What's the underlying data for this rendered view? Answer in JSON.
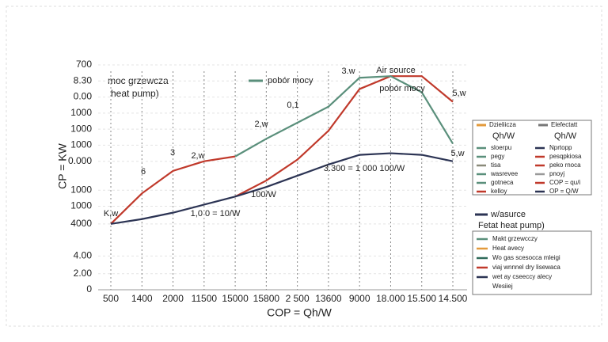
{
  "chart_data": {
    "type": "line",
    "x_label": "COP = Qh/W",
    "y_label": "CP = KW",
    "side_note": [
      "moc grzewcza",
      "heat pump)"
    ],
    "categories": [
      "500",
      "1400",
      "2000",
      "11500",
      "15000",
      "15800",
      "2 500",
      "13600",
      "9000",
      "18.000",
      "15.500",
      "14.500"
    ],
    "ylim": [
      0,
      14
    ],
    "yticks": [
      {
        "value": 14,
        "label": "700"
      },
      {
        "value": 13,
        "label": "8.30"
      },
      {
        "value": 12,
        "label": "0.00"
      },
      {
        "value": 11,
        "label": "1000"
      },
      {
        "value": 10,
        "label": "1000"
      },
      {
        "value": 9,
        "label": "1000"
      },
      {
        "value": 8,
        "label": "0.000"
      },
      {
        "value": 6.2,
        "label": "1000"
      },
      {
        "value": 5.2,
        "label": "1000"
      },
      {
        "value": 4.1,
        "label": "4000"
      },
      {
        "value": 2.1,
        "label": "4.00"
      },
      {
        "value": 1,
        "label": "2.00"
      },
      0
    ],
    "grid": true,
    "series": [
      {
        "name": "moc grzewcza heat pump)",
        "color": "#c0392b",
        "values": [
          4.1,
          6.0,
          7.4,
          8.0,
          8.3,
          null,
          null,
          null,
          null,
          null,
          null,
          null
        ]
      },
      {
        "name": "Air source",
        "color": "#c0392b",
        "values": [
          null,
          null,
          null,
          null,
          5.8,
          6.8,
          8.1,
          9.9,
          12.5,
          13.3,
          13.3,
          11.7
        ]
      },
      {
        "name": "pobór mocy",
        "color": "#5a8f7b",
        "values": [
          null,
          null,
          null,
          null,
          8.3,
          9.4,
          10.4,
          11.4,
          13.2,
          13.3,
          12.3,
          9.1
        ]
      },
      {
        "name": "w/asurce Fetat heat pump)",
        "color": "#2c3454",
        "values": [
          4.1,
          4.4,
          4.8,
          5.3,
          5.8,
          6.4,
          7.1,
          7.8,
          8.4,
          8.5,
          8.4,
          8.0
        ]
      }
    ],
    "annotations": [
      "K,w",
      "6",
      "3",
      "2,w",
      "2,w",
      "0,1",
      "3.w",
      "pobór mocy",
      "5,w",
      "5,w",
      "3.300 = 1 000  100/W",
      "100/W",
      "1,0 0 = 10/W"
    ],
    "legend_top": {
      "label": "pobór mocy",
      "color": "#5a8f7b"
    },
    "legend_box_1": {
      "headers": [
        {
          "label": "Dzieliicza",
          "sublabel": "Qh/W",
          "color": "#e39a3b"
        },
        {
          "label": "Elefectatt",
          "sublabel": "Qh/W",
          "color": "#777777"
        }
      ],
      "entries": [
        {
          "label": "sloerpu",
          "color": "#5a8f7b"
        },
        {
          "label": "Nprtopp",
          "color": "#2c3454"
        },
        {
          "label": "pegy",
          "color": "#5a8f7b"
        },
        {
          "label": "pesqpkiosa",
          "color": "#c0392b"
        },
        {
          "label": "tisa",
          "color": "#8a8a7a"
        },
        {
          "label": "peko rnoca",
          "color": "#c0392b"
        },
        {
          "label": "wasrevee",
          "color": "#5a8f7b"
        },
        {
          "label": "pnoyj",
          "color": "#999999"
        },
        {
          "label": "gotneca",
          "color": "#5a8f7b"
        },
        {
          "label": "COP = qu/i",
          "color": "#c0392b"
        },
        {
          "label": "kelloy",
          "color": "#c0392b"
        },
        {
          "label": "OP = Q/W",
          "color": "#2c3454"
        }
      ]
    },
    "legend_mid": {
      "label": "w/asurce",
      "sublabel": "Fetat heat pump)",
      "color": "#2c3454"
    },
    "legend_box_2": {
      "entries": [
        {
          "label": "Makt grzewcczy",
          "color": "#5a8f7b"
        },
        {
          "label": "Heat avecy",
          "color": "#e39a3b"
        },
        {
          "label": "Wo gas scesocca mleigi",
          "color": "#2f6a5a"
        },
        {
          "label": "viaj wnnnel dry lisewaca",
          "color": "#c0392b"
        },
        {
          "label": "wet ay cseeccy alecy",
          "color": "#2c3454"
        },
        {
          "label": "Wesiiej",
          "color": null
        }
      ]
    }
  }
}
